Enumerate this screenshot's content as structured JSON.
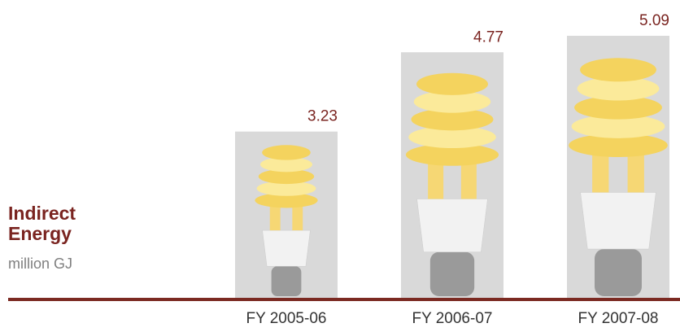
{
  "chart_data": {
    "type": "bar",
    "title": "Indirect Energy",
    "subtitle": "million GJ",
    "categories": [
      "FY 2005-06",
      "FY 2006-07",
      "FY 2007-08"
    ],
    "values": [
      3.23,
      4.77,
      5.09
    ],
    "color": "#d9d9d9",
    "baseline_color": "#7b2a22",
    "label_color": "#7a2420"
  }
}
